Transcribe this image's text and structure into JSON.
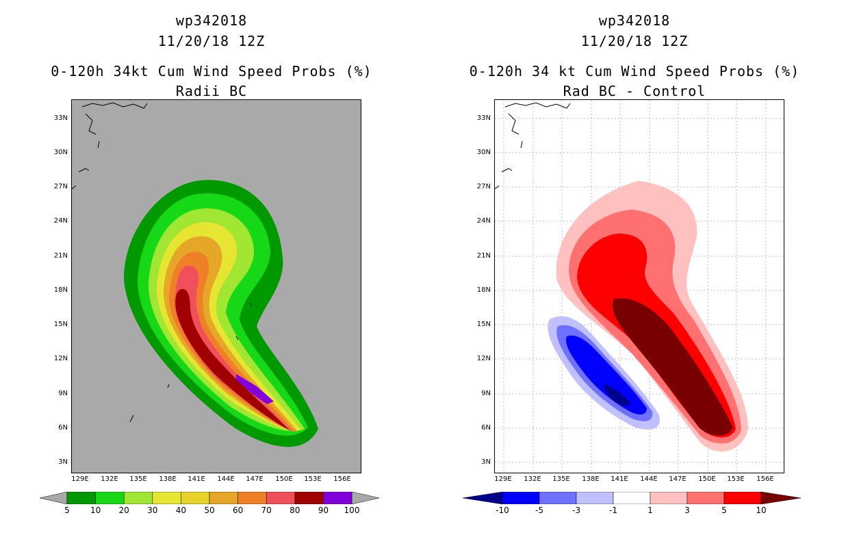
{
  "left_panel": {
    "title_line1": "wp342018",
    "title_line2": "11/20/18 12Z",
    "title_line3": "0-120h 34kt Cum Wind Speed Probs (%)",
    "title_line4": "Radii BC",
    "lat_labels": [
      "33N",
      "30N",
      "27N",
      "24N",
      "21N",
      "18N",
      "15N",
      "12N",
      "9N",
      "6N",
      "3N"
    ],
    "lon_labels": [
      "129E",
      "132E",
      "135E",
      "138E",
      "141E",
      "144E",
      "147E",
      "150E",
      "153E",
      "156E"
    ],
    "colorbar": {
      "colors": [
        "#009a00",
        "#17d817",
        "#a0e632",
        "#e6e632",
        "#e6d228",
        "#e6a628",
        "#ef8028",
        "#f0505a",
        "#a00000",
        "#8200dc"
      ],
      "labels": [
        "5",
        "10",
        "20",
        "30",
        "40",
        "50",
        "60",
        "70",
        "80",
        "90",
        "100"
      ]
    }
  },
  "right_panel": {
    "title_line1": "wp342018",
    "title_line2": "11/20/18 12Z",
    "title_line3": "0-120h 34 kt Cum Wind Speed Probs (%)",
    "title_line4": "Rad BC - Control",
    "lat_labels": [
      "33N",
      "30N",
      "27N",
      "24N",
      "21N",
      "18N",
      "15N",
      "12N",
      "9N",
      "6N",
      "3N"
    ],
    "lon_labels": [
      "129E",
      "132E",
      "135E",
      "138E",
      "141E",
      "144E",
      "147E",
      "150E",
      "153E",
      "156E"
    ],
    "colorbar": {
      "colors": [
        "#00008c",
        "#0000ff",
        "#7070ff",
        "#c0c0ff",
        "#ffffff",
        "#ffc0c0",
        "#ff7070",
        "#ff0000",
        "#780000"
      ],
      "labels": [
        "-10",
        "-5",
        "-3",
        "-1",
        "1",
        "3",
        "5",
        "10"
      ]
    }
  }
}
